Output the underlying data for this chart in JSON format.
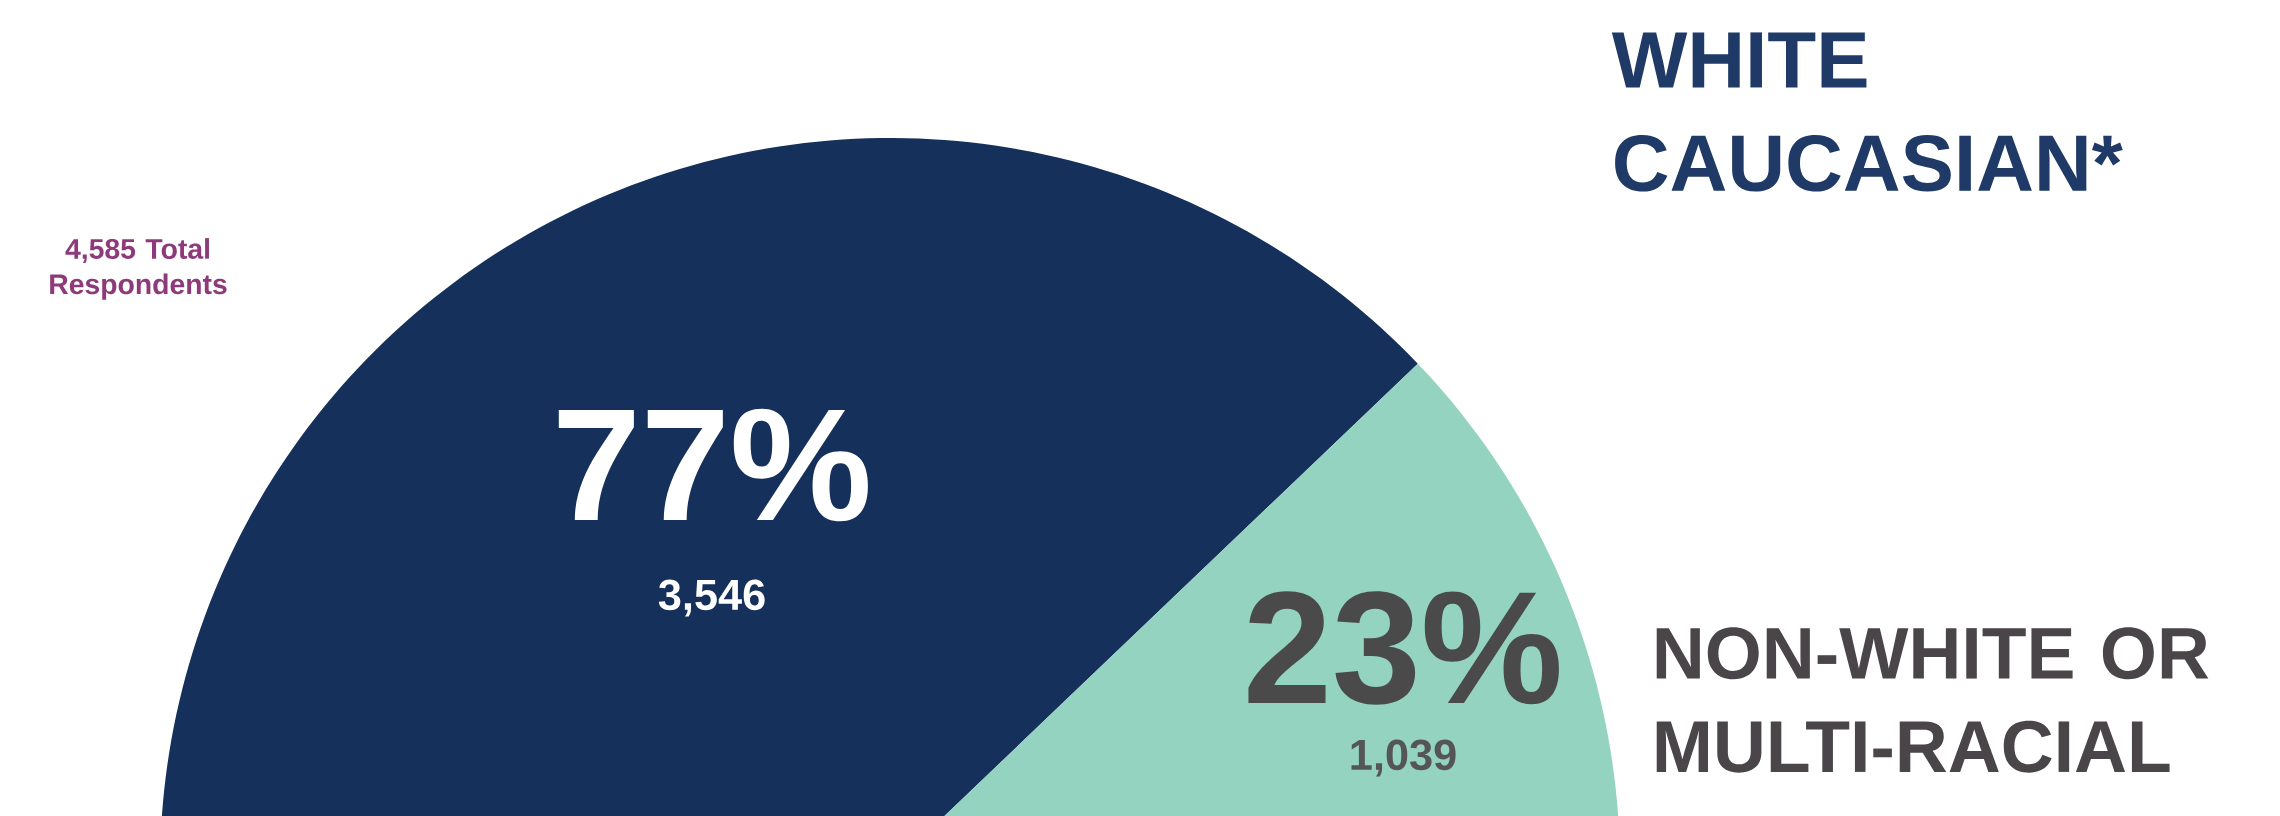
{
  "chart_data": {
    "type": "pie",
    "categories": [
      "WHITE CAUCASIAN*",
      "NON-WHITE OR MULTI-RACIAL"
    ],
    "values": [
      77,
      23
    ],
    "colors": [
      "#15305a",
      "#93d3c0"
    ],
    "value_labels": [
      "77%",
      "23%"
    ],
    "annotations": [
      "4,585 Total Respondents",
      "3,546",
      "1,039"
    ]
  }
}
